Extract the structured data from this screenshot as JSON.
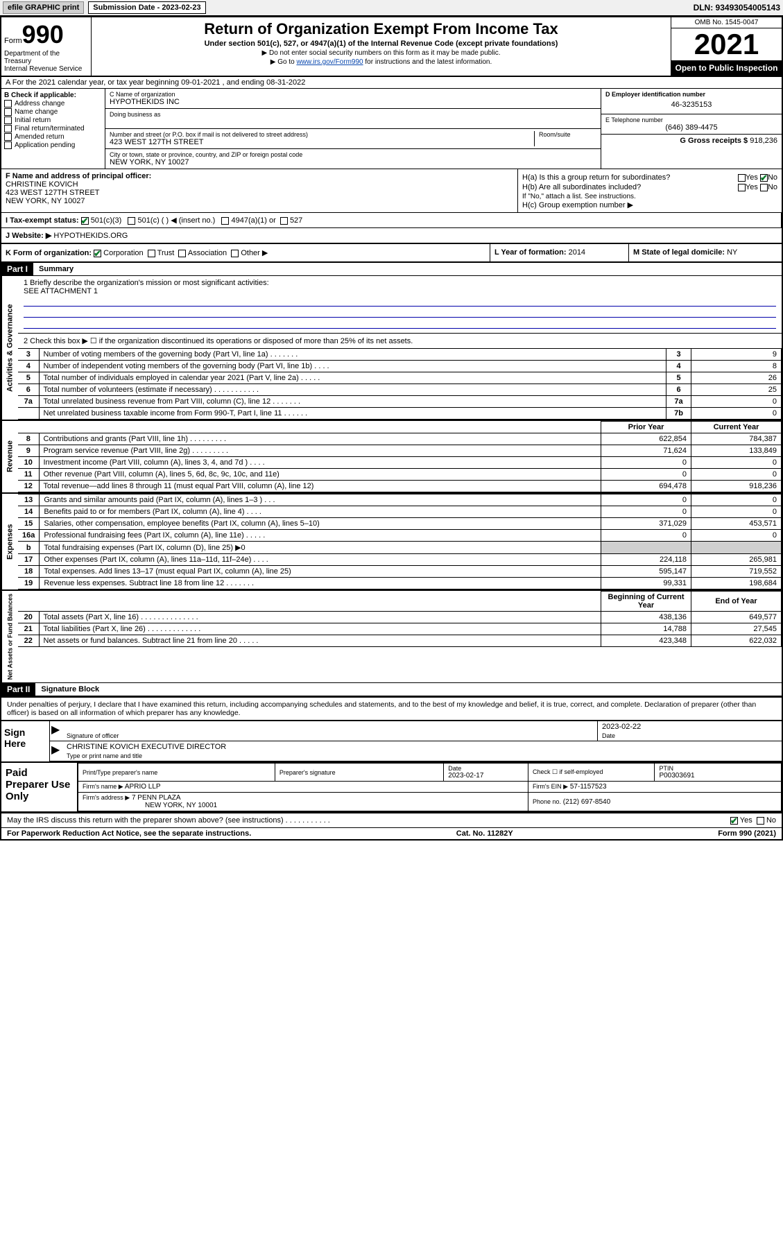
{
  "topbar": {
    "efile_label": "efile GRAPHIC print",
    "submission_label": "Submission Date - 2023-02-23",
    "dln_label": "DLN: 93493054005143"
  },
  "header": {
    "form_word": "Form",
    "form_number": "990",
    "title": "Return of Organization Exempt From Income Tax",
    "subtitle": "Under section 501(c), 527, or 4947(a)(1) of the Internal Revenue Code (except private foundations)",
    "note1": "▶ Do not enter social security numbers on this form as it may be made public.",
    "note2_pre": "▶ Go to ",
    "note2_link": "www.irs.gov/Form990",
    "note2_post": " for instructions and the latest information.",
    "dept": "Department of the Treasury\nInternal Revenue Service",
    "omb": "OMB No. 1545-0047",
    "year": "2021",
    "open_public": "Open to Public Inspection"
  },
  "sectionA": "A   For the 2021 calendar year, or tax year beginning 09-01-2021   , and ending 08-31-2022",
  "colB": {
    "label": "B Check if applicable:",
    "items": [
      "Address change",
      "Name change",
      "Initial return",
      "Final return/terminated",
      "Amended return",
      "Application pending"
    ]
  },
  "colC": {
    "name_label": "C Name of organization",
    "name": "HYPOTHEKIDS INC",
    "dba_label": "Doing business as",
    "addr_label": "Number and street (or P.O. box if mail is not delivered to street address)",
    "room_label": "Room/suite",
    "addr": "423 WEST 127TH STREET",
    "city_label": "City or town, state or province, country, and ZIP or foreign postal code",
    "city": "NEW YORK, NY  10027"
  },
  "colDE": {
    "d_label": "D Employer identification number",
    "d_val": "46-3235153",
    "e_label": "E Telephone number",
    "e_val": "(646) 389-4475",
    "g_label": "G Gross receipts $",
    "g_val": "918,236"
  },
  "rowF": {
    "label": "F  Name and address of principal officer:",
    "name": "CHRISTINE KOVICH",
    "addr1": "423 WEST 127TH STREET",
    "addr2": "NEW YORK, NY  10027"
  },
  "rowH": {
    "ha_label": "H(a)  Is this a group return for subordinates?",
    "ha_yes": "Yes",
    "ha_no": "No",
    "hb_label": "H(b)  Are all subordinates included?",
    "hb_yes": "Yes",
    "hb_no": "No",
    "hb_note": "If \"No,\" attach a list. See instructions.",
    "hc_label": "H(c)  Group exemption number ▶"
  },
  "rowI": {
    "label": "I    Tax-exempt status:",
    "opt1": "501(c)(3)",
    "opt2": "501(c) (   ) ◀ (insert no.)",
    "opt3": "4947(a)(1) or",
    "opt4": "527"
  },
  "rowJ": {
    "label": "J   Website: ▶",
    "val": "HYPOTHEKIDS.ORG"
  },
  "rowK": {
    "label": "K Form of organization:",
    "opts": [
      "Corporation",
      "Trust",
      "Association",
      "Other ▶"
    ]
  },
  "rowL": {
    "label": "L Year of formation:",
    "val": "2014"
  },
  "rowM": {
    "label": "M State of legal domicile:",
    "val": "NY"
  },
  "part1": {
    "tag": "Part I",
    "title": "Summary"
  },
  "summary": {
    "vert1": "Activities & Governance",
    "line1_label": "1  Briefly describe the organization's mission or most significant activities:",
    "line1_val": "SEE ATTACHMENT 1",
    "line2_label": "2  Check this box ▶ ☐  if the organization discontinued its operations or disposed of more than 25% of its net assets.",
    "rows_simple": [
      {
        "n": "3",
        "label": "Number of voting members of the governing body (Part VI, line 1a)   .   .   .   .   .   .   .",
        "k": "3",
        "v": "9"
      },
      {
        "n": "4",
        "label": "Number of independent voting members of the governing body (Part VI, line 1b)   .   .   .   .",
        "k": "4",
        "v": "8"
      },
      {
        "n": "5",
        "label": "Total number of individuals employed in calendar year 2021 (Part V, line 2a)   .   .   .   .   .",
        "k": "5",
        "v": "26"
      },
      {
        "n": "6",
        "label": "Total number of volunteers (estimate if necessary)   .   .   .   .   .   .   .   .   .   .   .",
        "k": "6",
        "v": "25"
      },
      {
        "n": "7a",
        "label": "Total unrelated business revenue from Part VIII, column (C), line 12   .   .   .   .   .   .   .",
        "k": "7a",
        "v": "0"
      },
      {
        "n": "",
        "label": "Net unrelated business taxable income from Form 990-T, Part I, line 11   .   .   .   .   .   .",
        "k": "7b",
        "v": "0"
      }
    ],
    "header_prior": "Prior Year",
    "header_current": "Current Year",
    "vert2": "Revenue",
    "revenue_rows": [
      {
        "n": "8",
        "label": "Contributions and grants (Part VIII, line 1h)   .   .   .   .   .   .   .   .   .",
        "p": "622,854",
        "c": "784,387"
      },
      {
        "n": "9",
        "label": "Program service revenue (Part VIII, line 2g)   .   .   .   .   .   .   .   .   .",
        "p": "71,624",
        "c": "133,849"
      },
      {
        "n": "10",
        "label": "Investment income (Part VIII, column (A), lines 3, 4, and 7d )   .   .   .   .",
        "p": "0",
        "c": "0"
      },
      {
        "n": "11",
        "label": "Other revenue (Part VIII, column (A), lines 5, 6d, 8c, 9c, 10c, and 11e)",
        "p": "0",
        "c": "0"
      },
      {
        "n": "12",
        "label": "Total revenue—add lines 8 through 11 (must equal Part VIII, column (A), line 12)",
        "p": "694,478",
        "c": "918,236"
      }
    ],
    "vert3": "Expenses",
    "expense_rows": [
      {
        "n": "13",
        "label": "Grants and similar amounts paid (Part IX, column (A), lines 1–3 )   .   .   .",
        "p": "0",
        "c": "0"
      },
      {
        "n": "14",
        "label": "Benefits paid to or for members (Part IX, column (A), line 4)   .   .   .   .",
        "p": "0",
        "c": "0"
      },
      {
        "n": "15",
        "label": "Salaries, other compensation, employee benefits (Part IX, column (A), lines 5–10)",
        "p": "371,029",
        "c": "453,571"
      },
      {
        "n": "16a",
        "label": "Professional fundraising fees (Part IX, column (A), line 11e)   .   .   .   .   .",
        "p": "0",
        "c": "0"
      },
      {
        "n": "b",
        "label": "Total fundraising expenses (Part IX, column (D), line 25) ▶0",
        "p": "",
        "c": "",
        "shaded": true
      },
      {
        "n": "17",
        "label": "Other expenses (Part IX, column (A), lines 11a–11d, 11f–24e)   .   .   .   .",
        "p": "224,118",
        "c": "265,981"
      },
      {
        "n": "18",
        "label": "Total expenses. Add lines 13–17 (must equal Part IX, column (A), line 25)",
        "p": "595,147",
        "c": "719,552"
      },
      {
        "n": "19",
        "label": "Revenue less expenses. Subtract line 18 from line 12   .   .   .   .   .   .   .",
        "p": "99,331",
        "c": "198,684"
      }
    ],
    "vert4": "Net Assets or\nFund Balances",
    "header_begin": "Beginning of Current Year",
    "header_end": "End of Year",
    "net_rows": [
      {
        "n": "20",
        "label": "Total assets (Part X, line 16)   .   .   .   .   .   .   .   .   .   .   .   .   .   .",
        "p": "438,136",
        "c": "649,577"
      },
      {
        "n": "21",
        "label": "Total liabilities (Part X, line 26)   .   .   .   .   .   .   .   .   .   .   .   .   .",
        "p": "14,788",
        "c": "27,545"
      },
      {
        "n": "22",
        "label": "Net assets or fund balances. Subtract line 21 from line 20   .   .   .   .   .",
        "p": "423,348",
        "c": "622,032"
      }
    ]
  },
  "part2": {
    "tag": "Part II",
    "title": "Signature Block"
  },
  "sig": {
    "declaration": "Under penalties of perjury, I declare that I have examined this return, including accompanying schedules and statements, and to the best of my knowledge and belief, it is true, correct, and complete. Declaration of preparer (other than officer) is based on all information of which preparer has any knowledge.",
    "sign_here": "Sign Here",
    "officer_sig_label": "Signature of officer",
    "date_val": "2023-02-22",
    "date_label": "Date",
    "officer_name": "CHRISTINE KOVICH  EXECUTIVE DIRECTOR",
    "officer_name_label": "Type or print name and title"
  },
  "prep": {
    "label": "Paid Preparer Use Only",
    "row1": {
      "c1_lbl": "Print/Type preparer's name",
      "c2_lbl": "Preparer's signature",
      "c3_lbl": "Date",
      "c3_val": "2023-02-17",
      "c4_lbl": "Check ☐ if self-employed",
      "c5_lbl": "PTIN",
      "c5_val": "P00303691"
    },
    "row2": {
      "lbl": "Firm's name    ▶",
      "val": "APRIO LLP",
      "ein_lbl": "Firm's EIN ▶",
      "ein_val": "57-1157523"
    },
    "row3": {
      "lbl": "Firm's address ▶",
      "val1": "7 PENN PLAZA",
      "val2": "NEW YORK, NY  10001",
      "ph_lbl": "Phone no.",
      "ph_val": "(212) 697-8540"
    }
  },
  "footer": {
    "discuss": "May the IRS discuss this return with the preparer shown above? (see instructions)   .   .   .   .   .   .   .   .   .   .   .",
    "yes": "Yes",
    "no": "No",
    "paperwork": "For Paperwork Reduction Act Notice, see the separate instructions.",
    "cat": "Cat. No. 11282Y",
    "formref": "Form 990 (2021)"
  }
}
